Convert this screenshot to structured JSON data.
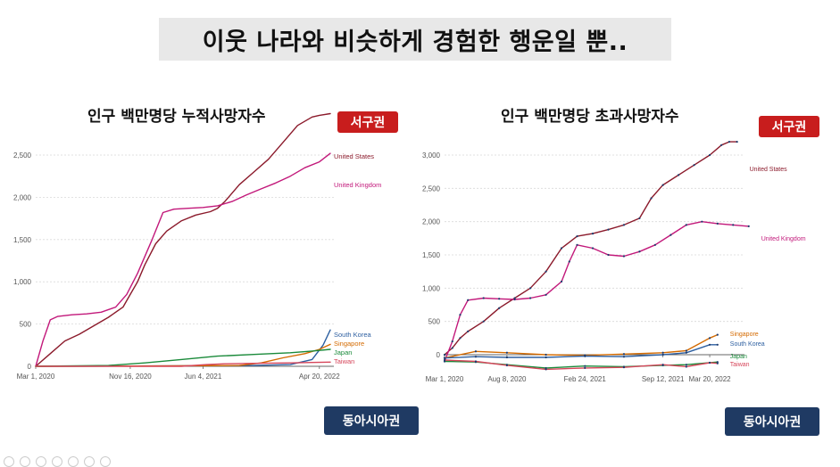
{
  "slide_title": "이웃 나라와 비슷하게 경험한 행운일 뿐..",
  "callouts": {
    "west": "서구권",
    "east": "동아시아권"
  },
  "colors": {
    "United States": "#8b1a2b",
    "United Kingdom": "#c2187a",
    "South Korea": "#2d5fa0",
    "Singapore": "#d46a00",
    "Japan": "#1a8a3a",
    "Taiwan": "#d6455a",
    "callout_red": "#c81d1d",
    "callout_navy": "#1f3a63"
  },
  "chart_data": [
    {
      "id": "cumulative",
      "type": "line",
      "title": "인구 백만명당 누적사망자수",
      "ylim": [
        0,
        2750
      ],
      "y_ticks": [
        0,
        500,
        1000,
        1500,
        2000,
        2500
      ],
      "y_tick_labels": [
        "0",
        "500",
        "1,000",
        "1,500",
        "2,000",
        "2,500"
      ],
      "x_ticks": [
        0,
        260,
        460,
        780
      ],
      "x_tick_labels": [
        "Mar 1, 2020",
        "Nov 16, 2020",
        "Jun 4, 2021",
        "Apr 20, 2022"
      ],
      "xlim": [
        0,
        780
      ],
      "series": [
        {
          "name": "United States",
          "label": "United States",
          "x": [
            0,
            40,
            80,
            120,
            160,
            200,
            240,
            260,
            280,
            300,
            330,
            360,
            400,
            440,
            480,
            500,
            520,
            560,
            600,
            640,
            680,
            720,
            760,
            780,
            810
          ],
          "y": [
            0,
            150,
            300,
            380,
            480,
            580,
            700,
            850,
            1000,
            1200,
            1450,
            1600,
            1720,
            1790,
            1830,
            1870,
            1950,
            2150,
            2300,
            2450,
            2650,
            2850,
            2950,
            2970,
            2990
          ]
        },
        {
          "name": "United Kingdom",
          "label": "United Kingdom",
          "x": [
            0,
            20,
            40,
            60,
            100,
            140,
            180,
            220,
            250,
            280,
            320,
            350,
            380,
            420,
            460,
            500,
            540,
            580,
            620,
            660,
            700,
            740,
            780,
            810
          ],
          "y": [
            0,
            300,
            550,
            590,
            610,
            620,
            640,
            700,
            850,
            1100,
            1500,
            1820,
            1860,
            1870,
            1880,
            1900,
            1950,
            2030,
            2100,
            2170,
            2250,
            2350,
            2420,
            2520
          ]
        },
        {
          "name": "South Korea",
          "label": "South Korea",
          "x": [
            0,
            200,
            400,
            600,
            700,
            760,
            790,
            810
          ],
          "y": [
            0,
            2,
            5,
            10,
            20,
            80,
            250,
            430
          ]
        },
        {
          "name": "Singapore",
          "label": "Singapore",
          "x": [
            0,
            200,
            400,
            560,
            620,
            680,
            740,
            780,
            810
          ],
          "y": [
            0,
            2,
            5,
            10,
            40,
            100,
            150,
            200,
            260
          ]
        },
        {
          "name": "Japan",
          "label": "Japan",
          "x": [
            0,
            200,
            300,
            400,
            500,
            600,
            700,
            760,
            810
          ],
          "y": [
            0,
            10,
            40,
            80,
            120,
            140,
            160,
            180,
            200
          ]
        },
        {
          "name": "Taiwan",
          "label": "Taiwan",
          "x": [
            0,
            200,
            400,
            470,
            520,
            600,
            700,
            760,
            810
          ],
          "y": [
            0,
            0,
            0,
            20,
            30,
            35,
            40,
            45,
            50
          ]
        }
      ]
    },
    {
      "id": "excess",
      "type": "line",
      "title": "인구 백만명당 초과사망자수",
      "ylim": [
        -300,
        3200
      ],
      "y_ticks": [
        0,
        500,
        1000,
        1500,
        2000,
        2500,
        3000
      ],
      "y_tick_labels": [
        "0",
        "500",
        "1,000",
        "1,500",
        "2,000",
        "2,500",
        "3,000"
      ],
      "x_ticks": [
        0,
        160,
        360,
        560,
        680
      ],
      "x_tick_labels": [
        "Mar 1, 2020",
        "Aug 8, 2020",
        "Feb 24, 2021",
        "Sep 12, 2021",
        "Mar 20, 2022"
      ],
      "xlim": [
        0,
        780
      ],
      "series": [
        {
          "name": "United States",
          "label": "United States",
          "x": [
            0,
            20,
            40,
            60,
            100,
            140,
            180,
            220,
            260,
            300,
            340,
            380,
            420,
            460,
            500,
            530,
            560,
            600,
            640,
            680,
            710,
            730,
            750
          ],
          "y": [
            0,
            100,
            250,
            350,
            500,
            700,
            850,
            1000,
            1250,
            1600,
            1780,
            1820,
            1880,
            1950,
            2050,
            2350,
            2550,
            2700,
            2850,
            3000,
            3150,
            3200,
            3200
          ]
        },
        {
          "name": "United Kingdom",
          "label": "United Kingdom",
          "x": [
            0,
            20,
            40,
            60,
            100,
            140,
            180,
            220,
            260,
            300,
            320,
            340,
            380,
            420,
            460,
            500,
            540,
            580,
            620,
            660,
            700,
            740,
            780
          ],
          "y": [
            -100,
            200,
            600,
            820,
            850,
            840,
            830,
            850,
            900,
            1100,
            1400,
            1650,
            1600,
            1500,
            1480,
            1550,
            1650,
            1800,
            1950,
            2000,
            1970,
            1950,
            1930
          ]
        },
        {
          "name": "Singapore",
          "label": "Singapore",
          "x": [
            0,
            80,
            160,
            260,
            360,
            460,
            560,
            620,
            680,
            700
          ],
          "y": [
            -50,
            50,
            30,
            0,
            -10,
            10,
            30,
            60,
            250,
            300
          ]
        },
        {
          "name": "South Korea",
          "label": "South Korea",
          "x": [
            0,
            80,
            160,
            260,
            360,
            460,
            560,
            620,
            680,
            700
          ],
          "y": [
            -50,
            -30,
            -40,
            -40,
            -20,
            -30,
            0,
            30,
            150,
            150
          ]
        },
        {
          "name": "Japan",
          "label": "Japan",
          "x": [
            0,
            80,
            160,
            260,
            360,
            460,
            560,
            620,
            680,
            700
          ],
          "y": [
            -100,
            -110,
            -150,
            -200,
            -170,
            -180,
            -160,
            -150,
            -120,
            -110
          ]
        },
        {
          "name": "Taiwan",
          "label": "Taiwan",
          "x": [
            0,
            80,
            160,
            260,
            360,
            460,
            560,
            620,
            680,
            700
          ],
          "y": [
            -80,
            -100,
            -160,
            -220,
            -200,
            -190,
            -150,
            -180,
            -120,
            -130
          ]
        }
      ]
    }
  ]
}
